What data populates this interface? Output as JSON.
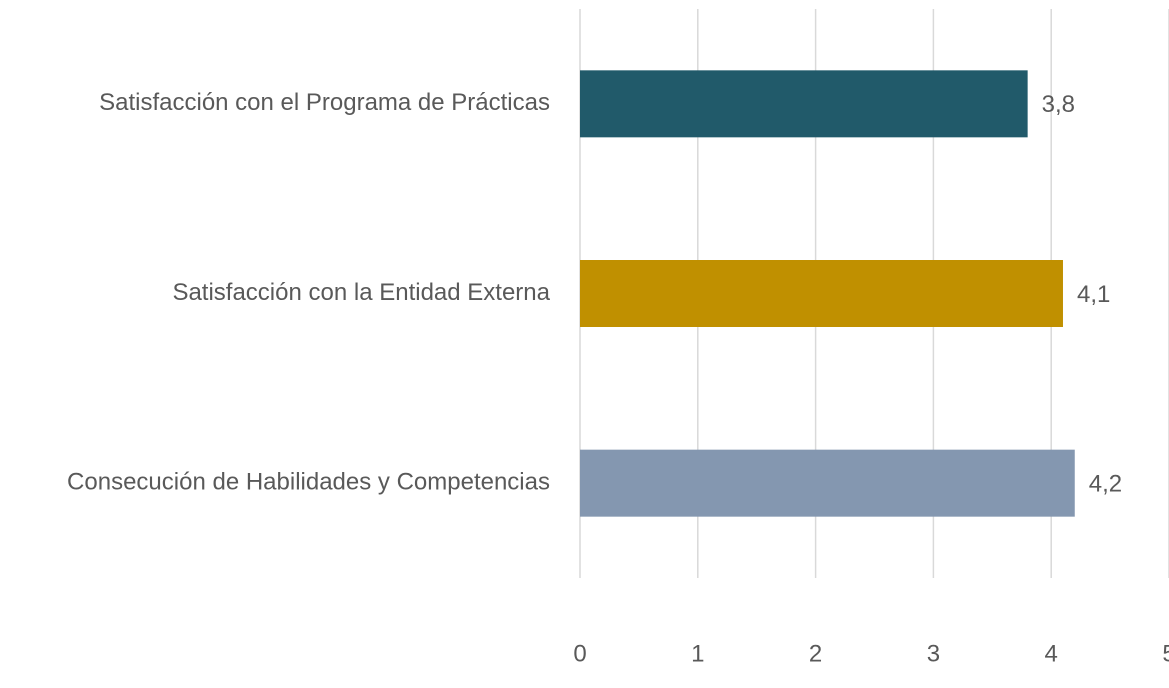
{
  "chart_data": {
    "type": "bar",
    "orientation": "horizontal",
    "categories": [
      "Satisfacción con el Programa de Prácticas",
      "Satisfacción con la Entidad Externa",
      "Consecución de Habilidades y Competencias"
    ],
    "values": [
      3.8,
      4.1,
      4.2
    ],
    "value_labels": [
      "3,8",
      "4,1",
      "4,2"
    ],
    "colors": [
      "#215a6a",
      "#c09000",
      "#8497b0"
    ],
    "xlim": [
      0,
      5
    ],
    "xticks": [
      0,
      1,
      2,
      3,
      4,
      5
    ],
    "grid": true
  }
}
